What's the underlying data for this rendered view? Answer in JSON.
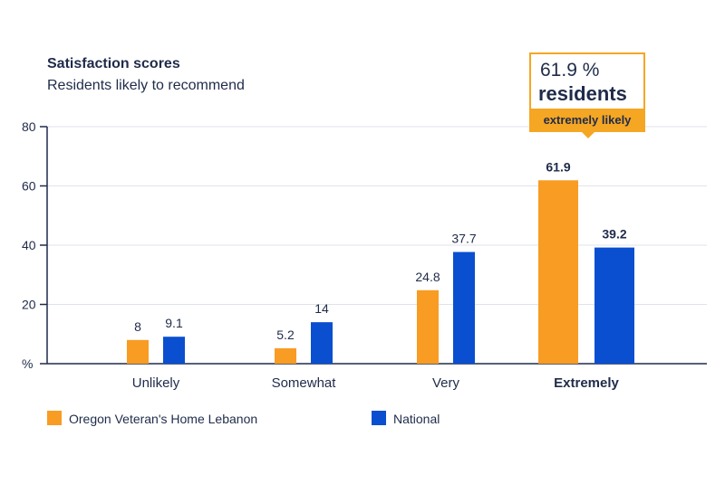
{
  "header": {
    "title": "Satisfaction scores",
    "subtitle": "Residents likely to recommend"
  },
  "callout": {
    "value_text": "61.9 %",
    "word": "residents",
    "band_text": "extremely likely"
  },
  "colors": {
    "oregon": "#f89c23",
    "national": "#0a4fcf",
    "axis": "#1f2b4a",
    "grid": "#dfe3ea"
  },
  "chart_data": {
    "type": "bar",
    "categories": [
      "Unlikely",
      "Somewhat",
      "Very",
      "Extremely"
    ],
    "highlight_category": "Extremely",
    "series": [
      {
        "name": "Oregon Veteran's Home Lebanon",
        "values": [
          8,
          5.2,
          24.8,
          61.9
        ],
        "value_labels": [
          "8",
          "5.2",
          "24.8",
          "61.9"
        ]
      },
      {
        "name": "National",
        "values": [
          9.1,
          14,
          37.7,
          39.2
        ],
        "value_labels": [
          "9.1",
          "14",
          "37.7",
          "39.2"
        ]
      }
    ],
    "ylim": [
      0,
      80
    ],
    "yticks": [
      0,
      20,
      40,
      60,
      80
    ],
    "ytick_labels": [
      "%",
      "20",
      "40",
      "60",
      "80"
    ],
    "grid": true,
    "legend_position": "bottom-left"
  }
}
